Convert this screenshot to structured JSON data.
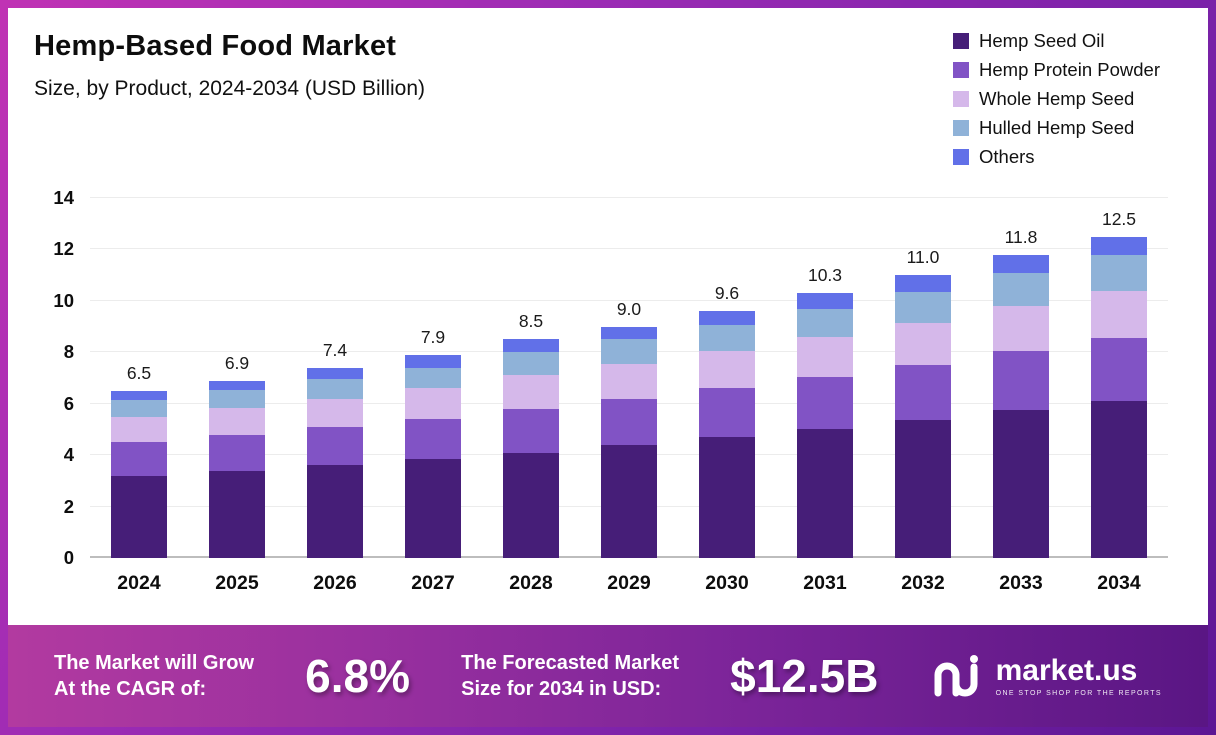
{
  "header": {
    "title": "Hemp-Based Food Market",
    "subtitle": "Size, by Product, 2024-2034 (USD Billion)"
  },
  "chart_data": {
    "type": "bar",
    "stacked": true,
    "title": "Hemp-Based Food Market Size, by Product, 2024-2034 (USD Billion)",
    "categories": [
      "2024",
      "2025",
      "2026",
      "2027",
      "2028",
      "2029",
      "2030",
      "2031",
      "2032",
      "2033",
      "2034"
    ],
    "series": [
      {
        "name": "Hemp Seed Oil",
        "color": "#461E78",
        "values": [
          3.2,
          3.4,
          3.6,
          3.85,
          4.1,
          4.4,
          4.7,
          5.0,
          5.35,
          5.75,
          6.1
        ]
      },
      {
        "name": "Hemp Protein Powder",
        "color": "#8153C5",
        "values": [
          1.3,
          1.4,
          1.5,
          1.55,
          1.7,
          1.8,
          1.9,
          2.05,
          2.15,
          2.3,
          2.45
        ]
      },
      {
        "name": "Whole Hemp Seed",
        "color": "#D5B8EA",
        "values": [
          1.0,
          1.05,
          1.1,
          1.2,
          1.3,
          1.35,
          1.45,
          1.55,
          1.65,
          1.75,
          1.85
        ]
      },
      {
        "name": "Hulled Hemp Seed",
        "color": "#8FB2D8",
        "values": [
          0.65,
          0.7,
          0.75,
          0.8,
          0.9,
          0.95,
          1.0,
          1.1,
          1.2,
          1.3,
          1.4
        ]
      },
      {
        "name": "Others",
        "color": "#6170E8",
        "values": [
          0.35,
          0.35,
          0.45,
          0.5,
          0.5,
          0.5,
          0.55,
          0.6,
          0.65,
          0.7,
          0.7
        ]
      }
    ],
    "totals": [
      "6.5",
      "6.9",
      "7.4",
      "7.9",
      "8.5",
      "9.0",
      "9.6",
      "10.3",
      "11.0",
      "11.8",
      "12.5"
    ],
    "ylim": [
      0,
      14
    ],
    "yticks": [
      0,
      2,
      4,
      6,
      8,
      10,
      12,
      14
    ],
    "legend_position": "top-right",
    "grid": true
  },
  "footer": {
    "cagr_label_line1": "The Market will Grow",
    "cagr_label_line2": "At the CAGR of:",
    "cagr_value": "6.8%",
    "forecast_label_line1": "The Forecasted Market",
    "forecast_label_line2": "Size for 2034 in USD:",
    "forecast_value": "$12.5B",
    "brand": "market.us",
    "brand_tagline": "ONE STOP SHOP FOR THE REPORTS"
  }
}
